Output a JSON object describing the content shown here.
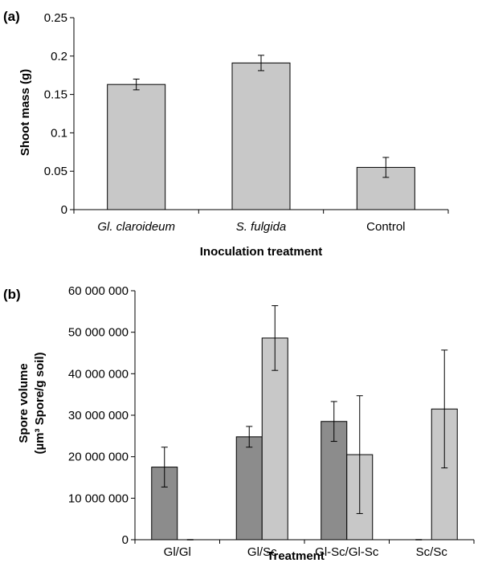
{
  "chart_data": [
    {
      "type": "bar",
      "panel_label": "(a)",
      "categories": [
        "Gl. claroideum",
        "S. fulgida",
        "Control"
      ],
      "categories_italic": [
        true,
        true,
        false
      ],
      "values": [
        0.163,
        0.191,
        0.055
      ],
      "errors": [
        0.007,
        0.01,
        0.013
      ],
      "xlabel": "Inoculation treatment",
      "ylabel": "Shoot mass (g)",
      "ylim": [
        0,
        0.25
      ],
      "yticks": [
        "0",
        "0.05",
        "0.1",
        "0.15",
        "0.2",
        "0.25"
      ],
      "bar_color": "#c8c8c8",
      "grid": false
    },
    {
      "type": "bar",
      "panel_label": "(b)",
      "categories": [
        "Gl/Gl",
        "Gl/Sc",
        "Gl-Sc/Gl-Sc",
        "Sc/Sc"
      ],
      "series": [
        {
          "values": [
            17500000,
            24800000,
            28500000,
            0
          ],
          "errors": [
            4800000,
            2500000,
            4800000,
            0
          ],
          "color": "#8c8c8c"
        },
        {
          "values": [
            0,
            48600000,
            20500000,
            31500000
          ],
          "errors": [
            0,
            7800000,
            14200000,
            14200000
          ],
          "color": "#c8c8c8"
        }
      ],
      "xlabel": "Treatment",
      "ylabel_lines": [
        "Spore volume",
        "(µm³ Spore/g soil)"
      ],
      "ylim": [
        0,
        60000000
      ],
      "yticks": [
        "0",
        "10 000 000",
        "20 000 000",
        "30 000 000",
        "40 000 000",
        "50 000 000",
        "60 000 000"
      ],
      "grid": false
    }
  ]
}
